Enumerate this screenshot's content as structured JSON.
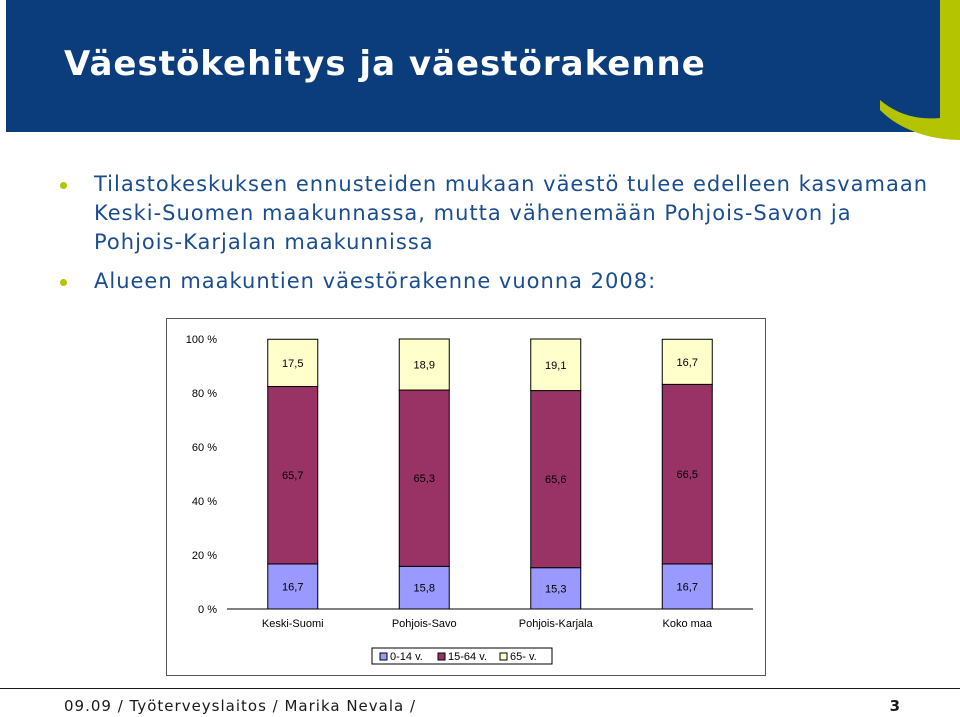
{
  "header": {
    "title": "Väestökehitys ja väestörakenne"
  },
  "bullets": [
    "Tilastokeskuksen ennusteiden mukaan väestö tulee edelleen kasvamaan Keski-Suomen maakunnassa, mutta vähenemään Pohjois-Savon ja Pohjois-Karjalan maakunnissa",
    "Alueen maakuntien väestörakenne vuonna 2008:"
  ],
  "colors": {
    "header_band": "#0b3d7c",
    "accent": "#b5c400",
    "text": "#1a4d8f"
  },
  "chart_data": {
    "type": "bar",
    "stacked": true,
    "percent_stacked": true,
    "categories": [
      "Keski-Suomi",
      "Pohjois-Savo",
      "Pohjois-Karjala",
      "Koko maa"
    ],
    "series": [
      {
        "name": "0-14 v.",
        "values": [
          16.7,
          15.8,
          15.3,
          16.7
        ],
        "labels": [
          "16,7",
          "15,8",
          "15,3",
          "16,7"
        ],
        "color": "#9999ff"
      },
      {
        "name": "15-64 v.",
        "values": [
          65.7,
          65.3,
          65.6,
          66.5
        ],
        "labels": [
          "65,7",
          "65,3",
          "65,6",
          "66,5"
        ],
        "color": "#993366"
      },
      {
        "name": "65- v.",
        "values": [
          17.5,
          18.9,
          19.1,
          16.7
        ],
        "labels": [
          "17,5",
          "18,9",
          "19,1",
          "16,7"
        ],
        "color": "#ffffcc"
      }
    ],
    "ylim": [
      0,
      100
    ],
    "yticks": [
      "0 %",
      "20 %",
      "40 %",
      "60 %",
      "80 %",
      "100 %"
    ],
    "grid": false,
    "legend": "bottom"
  },
  "footer": {
    "text": "09.09 / Työterveyslaitos / Marika Nevala /",
    "page_number": "3"
  }
}
